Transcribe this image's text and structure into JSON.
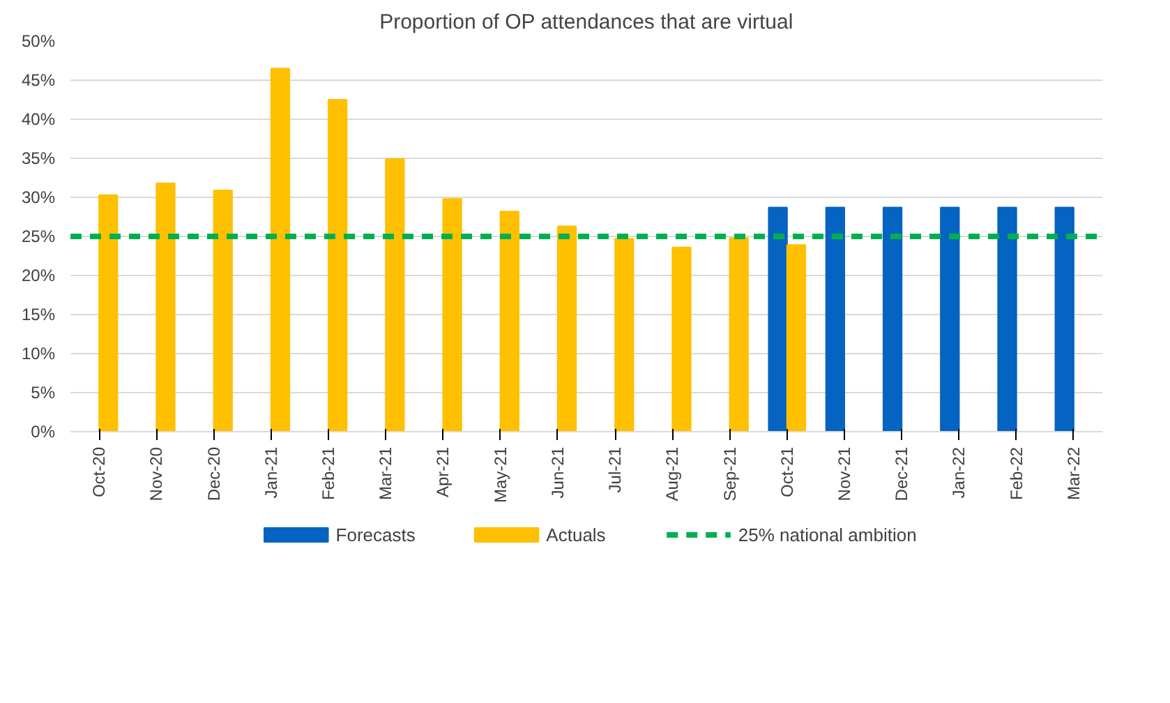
{
  "chart_data": {
    "type": "bar",
    "title": "Proportion of OP attendances that are virtual",
    "categories": [
      "Oct-20",
      "Nov-20",
      "Dec-20",
      "Jan-21",
      "Feb-21",
      "Mar-21",
      "Apr-21",
      "May-21",
      "Jun-21",
      "Jul-21",
      "Aug-21",
      "Sep-21",
      "Oct-21",
      "Nov-21",
      "Dec-21",
      "Jan-22",
      "Feb-22",
      "Mar-22"
    ],
    "series": [
      {
        "name": "Forecasts",
        "color": "#0563c1",
        "values": [
          null,
          null,
          null,
          null,
          null,
          null,
          null,
          null,
          null,
          null,
          null,
          null,
          28.7,
          28.7,
          28.7,
          28.7,
          28.7,
          28.7
        ]
      },
      {
        "name": "Actuals",
        "color": "#ffc000",
        "values": [
          30.3,
          31.8,
          30.9,
          46.5,
          42.5,
          34.9,
          29.8,
          28.2,
          26.3,
          24.7,
          23.6,
          24.8,
          23.9,
          null,
          null,
          null,
          null,
          null
        ]
      }
    ],
    "ref_lines": [
      {
        "axis": "y",
        "value": 25,
        "label": "25% national ambition",
        "color": "#00b050",
        "line_style": "dashed"
      }
    ],
    "ylim": [
      0,
      50
    ],
    "yticks": [
      {
        "value": 0,
        "label": "0%"
      },
      {
        "value": 5,
        "label": "5%"
      },
      {
        "value": 10,
        "label": "10%"
      },
      {
        "value": 15,
        "label": "15%"
      },
      {
        "value": 20,
        "label": "20%"
      },
      {
        "value": 25,
        "label": "25%"
      },
      {
        "value": 30,
        "label": "30%"
      },
      {
        "value": 35,
        "label": "35%"
      },
      {
        "value": 40,
        "label": "40%"
      },
      {
        "value": 45,
        "label": "45%"
      },
      {
        "value": 50,
        "label": "50%"
      }
    ],
    "grid": "y",
    "legend": "bottom"
  }
}
